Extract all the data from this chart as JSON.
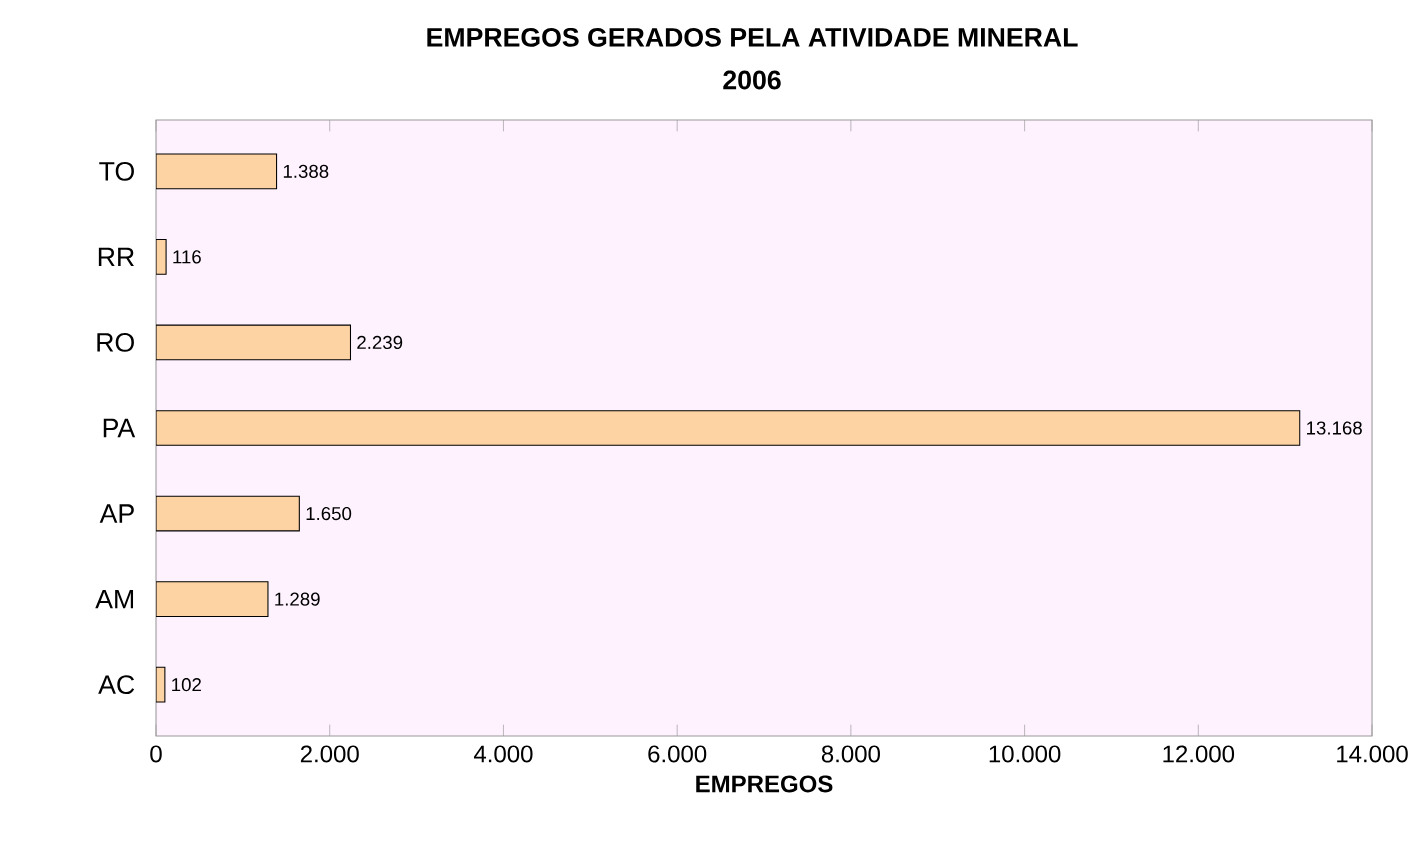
{
  "chart_data": {
    "type": "bar",
    "orientation": "horizontal",
    "title": "EMPREGOS GERADOS PELA ATIVIDADE MINERAL",
    "subtitle": "2006",
    "xlabel": "EMPREGOS",
    "categories": [
      "TO",
      "RR",
      "RO",
      "PA",
      "AP",
      "AM",
      "AC"
    ],
    "values": [
      1388,
      116,
      2239,
      13168,
      1650,
      1289,
      102
    ],
    "value_labels": [
      "1.388",
      "116",
      "2.239",
      "13.168",
      "1.650",
      "1.289",
      "102"
    ],
    "color": "#fdd3a4",
    "xlim": [
      0,
      14000
    ],
    "xticks": [
      0,
      {
        "value": 2000,
        "label": "2.000"
      },
      {
        "value": 4000,
        "label": "4.000"
      },
      {
        "value": 6000,
        "label": "6.000"
      },
      {
        "value": 8000,
        "label": "8.000"
      },
      {
        "value": 10000,
        "label": "10.000"
      },
      {
        "value": 12000,
        "label": "12.000"
      },
      {
        "value": 14000,
        "label": "14.000"
      }
    ],
    "grid": false
  }
}
